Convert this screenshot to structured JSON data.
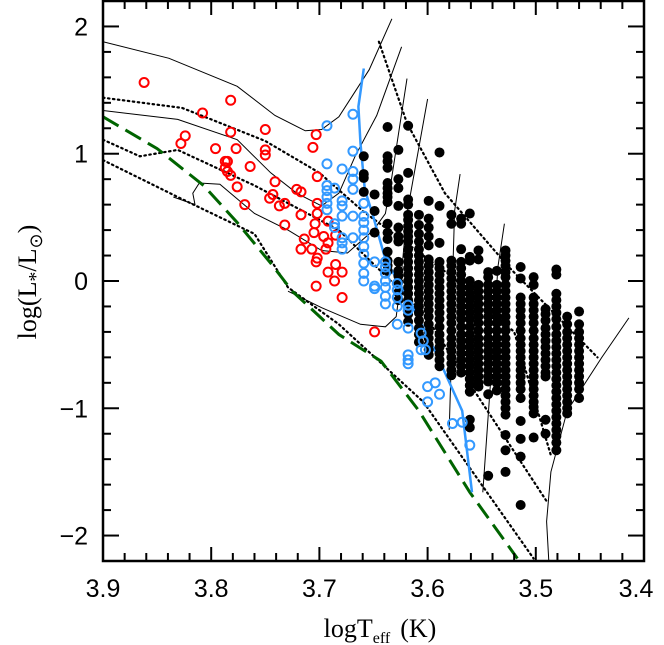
{
  "chart_data": {
    "type": "scatter",
    "xlabel": "logT",
    "xlabel_sub": "eff",
    "xlabel_unit": "(K)",
    "ylabel": "log(L",
    "ylabel_star": "*",
    "ylabel_mid": "/L",
    "ylabel_sun": "⊙",
    "ylabel_end": ")",
    "xlim": [
      3.9,
      3.4
    ],
    "ylim": [
      -2.2,
      2.2
    ],
    "x_ticks": [
      "3.9",
      "3.8",
      "3.7",
      "3.6",
      "3.5",
      "3.4"
    ],
    "y_ticks": [
      "2",
      "1",
      "0",
      "−1",
      "−2"
    ],
    "x_tick_values": [
      3.9,
      3.8,
      3.7,
      3.6,
      3.5,
      3.4
    ],
    "y_tick_values": [
      2,
      1,
      0,
      -1,
      -2
    ],
    "grid": false,
    "colors": {
      "red": "#ff0000",
      "blue": "#3399ff",
      "black": "#000000",
      "green": "#006400"
    },
    "red_open_points": [
      [
        3.862,
        1.56
      ],
      [
        3.782,
        1.42
      ],
      [
        3.808,
        1.32
      ],
      [
        3.824,
        1.14
      ],
      [
        3.828,
        1.08
      ],
      [
        3.75,
        1.19
      ],
      [
        3.782,
        1.17
      ],
      [
        3.703,
        1.15
      ],
      [
        3.796,
        1.04
      ],
      [
        3.777,
        1.04
      ],
      [
        3.75,
        1.03
      ],
      [
        3.75,
        0.99
      ],
      [
        3.706,
        1.05
      ],
      [
        3.787,
        0.94
      ],
      [
        3.785,
        0.94
      ],
      [
        3.787,
        0.89
      ],
      [
        3.785,
        0.86
      ],
      [
        3.782,
        0.83
      ],
      [
        3.764,
        0.9
      ],
      [
        3.776,
        0.74
      ],
      [
        3.741,
        0.78
      ],
      [
        3.702,
        0.82
      ],
      [
        3.721,
        0.72
      ],
      [
        3.717,
        0.7
      ],
      [
        3.743,
        0.68
      ],
      [
        3.746,
        0.65
      ],
      [
        3.732,
        0.61
      ],
      [
        3.737,
        0.59
      ],
      [
        3.769,
        0.6
      ],
      [
        3.702,
        0.61
      ],
      [
        3.717,
        0.52
      ],
      [
        3.702,
        0.53
      ],
      [
        3.704,
        0.45
      ],
      [
        3.692,
        0.47
      ],
      [
        3.732,
        0.44
      ],
      [
        3.705,
        0.38
      ],
      [
        3.685,
        0.36
      ],
      [
        3.696,
        0.35
      ],
      [
        3.692,
        0.3
      ],
      [
        3.714,
        0.33
      ],
      [
        3.707,
        0.25
      ],
      [
        3.694,
        0.25
      ],
      [
        3.717,
        0.25
      ],
      [
        3.702,
        0.18
      ],
      [
        3.703,
        0.15
      ],
      [
        3.685,
        0.13
      ],
      [
        3.692,
        0.07
      ],
      [
        3.679,
        0.07
      ],
      [
        3.686,
        0.0
      ],
      [
        3.703,
        -0.04
      ],
      [
        3.679,
        -0.13
      ],
      [
        3.649,
        -0.4
      ]
    ],
    "blue_open_points": [
      [
        3.693,
        1.22
      ],
      [
        3.669,
        1.31
      ],
      [
        3.669,
        1.02
      ],
      [
        3.693,
        0.92
      ],
      [
        3.679,
        0.88
      ],
      [
        3.669,
        0.86
      ],
      [
        3.669,
        0.8
      ],
      [
        3.693,
        0.75
      ],
      [
        3.693,
        0.71
      ],
      [
        3.693,
        0.66
      ],
      [
        3.693,
        0.61
      ],
      [
        3.693,
        0.56
      ],
      [
        3.686,
        0.73
      ],
      [
        3.679,
        0.63
      ],
      [
        3.679,
        0.59
      ],
      [
        3.679,
        0.51
      ],
      [
        3.669,
        0.72
      ],
      [
        3.669,
        0.51
      ],
      [
        3.659,
        0.61
      ],
      [
        3.659,
        0.51
      ],
      [
        3.659,
        0.46
      ],
      [
        3.659,
        0.4
      ],
      [
        3.659,
        0.34
      ],
      [
        3.659,
        0.27
      ],
      [
        3.659,
        0.21
      ],
      [
        3.659,
        0.14
      ],
      [
        3.659,
        0.06
      ],
      [
        3.686,
        0.45
      ],
      [
        3.686,
        0.42
      ],
      [
        3.679,
        0.34
      ],
      [
        3.679,
        0.3
      ],
      [
        3.679,
        0.25
      ],
      [
        3.669,
        0.34
      ],
      [
        3.649,
        0.15
      ],
      [
        3.659,
        0.0
      ],
      [
        3.649,
        -0.04
      ],
      [
        3.649,
        -0.06
      ],
      [
        3.639,
        0.15
      ],
      [
        3.639,
        0.11
      ],
      [
        3.639,
        0.06
      ],
      [
        3.639,
        0.0
      ],
      [
        3.639,
        -0.05
      ],
      [
        3.639,
        -0.12
      ],
      [
        3.639,
        -0.18
      ],
      [
        3.628,
        -0.02
      ],
      [
        3.628,
        -0.07
      ],
      [
        3.628,
        -0.13
      ],
      [
        3.628,
        -0.2
      ],
      [
        3.628,
        -0.34
      ],
      [
        3.618,
        -0.19
      ],
      [
        3.618,
        -0.23
      ],
      [
        3.618,
        -0.37
      ],
      [
        3.606,
        -0.41
      ],
      [
        3.604,
        -0.47
      ],
      [
        3.606,
        -0.54
      ],
      [
        3.602,
        -0.54
      ],
      [
        3.618,
        -0.58
      ],
      [
        3.618,
        -0.62
      ],
      [
        3.618,
        -0.65
      ],
      [
        3.6,
        -0.83
      ],
      [
        3.593,
        -0.8
      ],
      [
        3.6,
        -0.95
      ],
      [
        3.589,
        -0.89
      ],
      [
        3.577,
        -1.12
      ],
      [
        3.568,
        -1.11
      ],
      [
        3.561,
        -1.29
      ]
    ],
    "black_filled_columns": [
      {
        "logT": 3.659,
        "logL": [
          0.98,
          0.84,
          0.81,
          0.7
        ]
      },
      {
        "logT": 3.649,
        "logL": [
          0.68,
          0.55,
          0.38
        ]
      },
      {
        "logT": 3.637,
        "logL": [
          1.21,
          0.98,
          0.94,
          0.89,
          0.77,
          0.73,
          0.69,
          0.66,
          0.62,
          0.45,
          0.38,
          0.33,
          0.23,
          0.16,
          0.12,
          0.08
        ]
      },
      {
        "logT": 3.627,
        "logL": [
          1.03,
          0.8,
          0.73,
          0.59,
          0.42,
          0.35,
          0.31,
          0.15,
          0.08,
          0.04,
          -0.01,
          -0.09,
          -0.15
        ]
      },
      {
        "logT": 3.618,
        "logL": [
          1.22,
          0.85,
          0.64,
          0.6,
          0.52,
          0.48,
          0.43,
          0.39,
          0.35,
          0.31,
          0.25,
          0.2,
          0.15,
          0.1,
          0.05,
          0.0,
          -0.05,
          -0.1,
          -0.15,
          -0.2,
          -0.26,
          -0.32
        ]
      },
      {
        "logT": 3.608,
        "logL": [
          0.52,
          0.44,
          0.37,
          0.31,
          0.25,
          0.2,
          0.15,
          0.1,
          0.05,
          0.0,
          -0.05,
          -0.1,
          -0.15,
          -0.2,
          -0.25,
          -0.31,
          -0.37,
          -0.42,
          -0.48
        ]
      },
      {
        "logT": 3.599,
        "logL": [
          0.63,
          0.49,
          0.42,
          0.35,
          0.28,
          0.17,
          0.12,
          0.07,
          0.02,
          -0.03,
          -0.08,
          -0.13,
          -0.18,
          -0.23,
          -0.28,
          -0.34,
          -0.4,
          -0.45,
          -0.5,
          -0.54,
          -0.58
        ]
      },
      {
        "logT": 3.589,
        "logL": [
          1.01,
          0.59,
          0.3,
          0.15,
          0.1,
          0.05,
          0.0,
          -0.05,
          -0.1,
          -0.15,
          -0.2,
          -0.25,
          -0.3,
          -0.36,
          -0.42,
          -0.47,
          -0.52,
          -0.57,
          -0.62,
          -0.67
        ]
      },
      {
        "logT": 3.578,
        "logL": [
          0.52,
          0.45,
          0.16,
          0.12,
          0.07,
          0.02,
          -0.03,
          -0.08,
          -0.13,
          -0.18,
          -0.23,
          -0.28,
          -0.33,
          -0.39,
          -0.45,
          -0.5,
          -0.55,
          -0.6,
          -0.65,
          -0.7,
          -0.74
        ]
      },
      {
        "logT": 3.569,
        "logL": [
          0.49,
          0.45,
          0.25,
          0.15,
          0.1,
          0.05,
          0.0,
          -0.05,
          -0.1,
          -0.15,
          -0.2,
          -0.25,
          -0.3,
          -0.36,
          -0.42,
          -0.47,
          -0.52,
          -0.57,
          -0.62,
          -0.67,
          -0.72
        ]
      },
      {
        "logT": 3.561,
        "logL": [
          0.53,
          0.19,
          0.16,
          0.0,
          -0.05,
          -0.1,
          -0.15,
          -0.2,
          -0.25,
          -0.3,
          -0.36,
          -0.42,
          -0.47,
          -0.52,
          -0.57,
          -0.62,
          -0.67,
          -0.72,
          -0.77,
          -0.82,
          -0.87,
          -1.09,
          -1.15
        ]
      },
      {
        "logT": 3.553,
        "logL": [
          0.24,
          0.17,
          -0.03,
          -0.08,
          -0.13,
          -0.18,
          -0.23,
          -0.28,
          -0.33,
          -0.39,
          -0.45,
          -0.5,
          -0.55,
          -0.6,
          -0.65,
          -0.7,
          -0.75,
          -0.8,
          -0.83
        ]
      },
      {
        "logT": 3.544,
        "logL": [
          0.07,
          0.03,
          -0.03,
          -0.08,
          -0.13,
          -0.18,
          -0.23,
          -0.28,
          -0.33,
          -0.39,
          -0.45,
          -0.5,
          -0.55,
          -0.6,
          -0.65,
          -0.7,
          -0.75,
          -0.79,
          -0.89,
          -1.53
        ]
      },
      {
        "logT": 3.536,
        "logL": [
          0.08,
          -0.03,
          -0.08,
          -0.13,
          -0.18,
          -0.23,
          -0.28,
          -0.33,
          -0.39,
          -0.45,
          -0.5,
          -0.55,
          -0.6,
          -0.65,
          -0.7,
          -0.75,
          -0.8,
          -0.86
        ]
      },
      {
        "logT": 3.528,
        "logL": [
          0.24,
          0.2,
          0.16,
          0.12,
          0.07,
          0.03,
          -0.03,
          -0.08,
          -0.13,
          -0.18,
          -0.23,
          -0.28,
          -0.33,
          -0.39,
          -0.45,
          -0.5,
          -0.55,
          -0.6,
          -0.65,
          -0.7,
          -0.75,
          -0.8,
          -0.85,
          -0.9,
          -0.95,
          -1.0,
          -1.05,
          -1.21,
          -1.33,
          -1.5
        ]
      },
      {
        "logT": 3.514,
        "logL": [
          0.11,
          0.02,
          -0.13,
          -0.18,
          -0.23,
          -0.28,
          -0.33,
          -0.39,
          -0.45,
          -0.5,
          -0.55,
          -0.6,
          -0.65,
          -0.7,
          -0.75,
          -0.8,
          -0.85,
          -0.92,
          -1.1,
          -1.24,
          -1.38,
          -1.76
        ]
      },
      {
        "logT": 3.502,
        "logL": [
          0.03,
          -0.03,
          -0.13,
          -0.18,
          -0.23,
          -0.28,
          -0.33,
          -0.39,
          -0.45,
          -0.5,
          -0.55,
          -0.6,
          -0.65,
          -0.7,
          -0.75,
          -0.8,
          -0.85,
          -0.9,
          -0.95,
          -0.99,
          -1.04,
          -1.23
        ]
      },
      {
        "logT": 3.491,
        "logL": [
          -0.22,
          -0.26,
          -0.31,
          -0.37,
          -0.42,
          -0.47,
          -0.52,
          -0.57,
          -0.62,
          -0.67,
          -0.72,
          -0.75,
          -1.09,
          -1.2
        ]
      },
      {
        "logT": 3.481,
        "logL": [
          0.09,
          0.05,
          -0.1,
          -0.15,
          -0.2,
          -0.25,
          -0.3,
          -0.36,
          -0.42,
          -0.47,
          -0.52,
          -0.57,
          -0.62,
          -0.67,
          -0.72,
          -0.77,
          -0.82,
          -0.87,
          -0.92,
          -0.97,
          -1.02,
          -1.07,
          -1.12,
          -1.17,
          -1.22,
          -1.27,
          -1.33
        ]
      },
      {
        "logT": 3.471,
        "logL": [
          -0.28,
          -0.34,
          -0.4,
          -0.45,
          -0.5,
          -0.55,
          -0.6,
          -0.65,
          -0.7,
          -0.75,
          -0.8,
          -0.85,
          -0.9,
          -0.95,
          -1.0,
          -1.04
        ]
      },
      {
        "logT": 3.46,
        "logL": [
          -0.24,
          -0.34,
          -0.4,
          -0.45,
          -0.5,
          -0.55,
          -0.6,
          -0.65,
          -0.7,
          -0.75,
          -0.8,
          -0.85,
          -0.92
        ]
      }
    ],
    "green_dashed_line": [
      [
        3.9,
        1.29
      ],
      [
        3.85,
        1.04
      ],
      [
        3.807,
        0.75
      ],
      [
        3.776,
        0.46
      ],
      [
        3.745,
        0.14
      ],
      [
        3.725,
        -0.08
      ],
      [
        3.682,
        -0.42
      ],
      [
        3.643,
        -0.63
      ],
      [
        3.608,
        -1.02
      ],
      [
        3.561,
        -1.66
      ],
      [
        3.517,
        -2.18
      ]
    ],
    "blue_solid_line": [
      [
        3.659,
        1.67
      ],
      [
        3.664,
        1.37
      ],
      [
        3.662,
        1.08
      ],
      [
        3.658,
        0.72
      ],
      [
        3.65,
        0.5
      ],
      [
        3.639,
        0.17
      ],
      [
        3.615,
        -0.18
      ],
      [
        3.592,
        -0.57
      ],
      [
        3.568,
        -1.02
      ],
      [
        3.559,
        -1.66
      ]
    ],
    "solid_tracks": [
      [
        [
          3.9,
          1.88
        ],
        [
          3.839,
          1.75
        ],
        [
          3.776,
          1.53
        ],
        [
          3.741,
          1.3
        ],
        [
          3.713,
          1.18
        ],
        [
          3.698,
          1.19
        ],
        [
          3.682,
          1.29
        ],
        [
          3.654,
          1.66
        ],
        [
          3.633,
          2.06
        ]
      ],
      [
        [
          3.9,
          1.34
        ],
        [
          3.831,
          1.27
        ],
        [
          3.776,
          1.11
        ],
        [
          3.745,
          0.85
        ],
        [
          3.721,
          0.69
        ],
        [
          3.698,
          0.59
        ],
        [
          3.682,
          0.69
        ],
        [
          3.667,
          0.98
        ],
        [
          3.647,
          1.3
        ],
        [
          3.624,
          1.84
        ]
      ],
      [
        [
          3.835,
          0.66
        ],
        [
          3.815,
          0.6
        ],
        [
          3.817,
          0.69
        ],
        [
          3.811,
          0.77
        ],
        [
          3.792,
          0.76
        ],
        [
          3.76,
          0.53
        ],
        [
          3.729,
          0.4
        ],
        [
          3.698,
          0.24
        ],
        [
          3.674,
          0.22
        ],
        [
          3.65,
          0.4
        ],
        [
          3.639,
          0.53
        ],
        [
          3.633,
          0.82
        ],
        [
          3.619,
          1.59
        ]
      ],
      [
        [
          3.729,
          -0.08
        ],
        [
          3.698,
          -0.21
        ],
        [
          3.662,
          -0.34
        ],
        [
          3.639,
          -0.36
        ],
        [
          3.629,
          -0.28
        ],
        [
          3.625,
          -0.02
        ],
        [
          3.619,
          0.53
        ],
        [
          3.6,
          1.43
        ]
      ],
      [
        [
          3.57,
          0.84
        ],
        [
          3.575,
          0.55
        ],
        [
          3.577,
          0.0
        ],
        [
          3.578,
          -0.6
        ],
        [
          3.58,
          -1.17
        ]
      ],
      [
        [
          3.529,
          0.45
        ],
        [
          3.535,
          0.11
        ],
        [
          3.541,
          -0.7
        ],
        [
          3.549,
          -1.66
        ]
      ],
      [
        [
          3.414,
          -0.29
        ],
        [
          3.439,
          -0.6
        ],
        [
          3.471,
          -1.02
        ],
        [
          3.486,
          -1.5
        ],
        [
          3.49,
          -1.89
        ],
        [
          3.488,
          -2.2
        ]
      ]
    ],
    "dotted_isochrones": [
      [
        [
          3.645,
          1.88
        ],
        [
          3.619,
          1.24
        ],
        [
          3.584,
          0.69
        ],
        [
          3.525,
          0.11
        ],
        [
          3.443,
          -0.6
        ]
      ],
      [
        [
          3.9,
          1.44
        ],
        [
          3.827,
          1.36
        ],
        [
          3.8,
          1.27
        ],
        [
          3.75,
          1.1
        ],
        [
          3.7,
          0.85
        ],
        [
          3.66,
          0.55
        ],
        [
          3.62,
          0.3
        ],
        [
          3.58,
          0.05
        ],
        [
          3.52,
          -0.4
        ],
        [
          3.486,
          -1.37
        ]
      ],
      [
        [
          3.9,
          1.11
        ],
        [
          3.866,
          0.98
        ],
        [
          3.831,
          1.03
        ],
        [
          3.76,
          0.75
        ],
        [
          3.682,
          0.4
        ],
        [
          3.604,
          -0.25
        ],
        [
          3.49,
          -1.73
        ]
      ],
      [
        [
          3.9,
          0.95
        ],
        [
          3.831,
          0.66
        ],
        [
          3.76,
          0.37
        ],
        [
          3.729,
          -0.05
        ],
        [
          3.682,
          -0.34
        ],
        [
          3.604,
          -0.95
        ],
        [
          3.502,
          -2.18
        ]
      ]
    ]
  }
}
